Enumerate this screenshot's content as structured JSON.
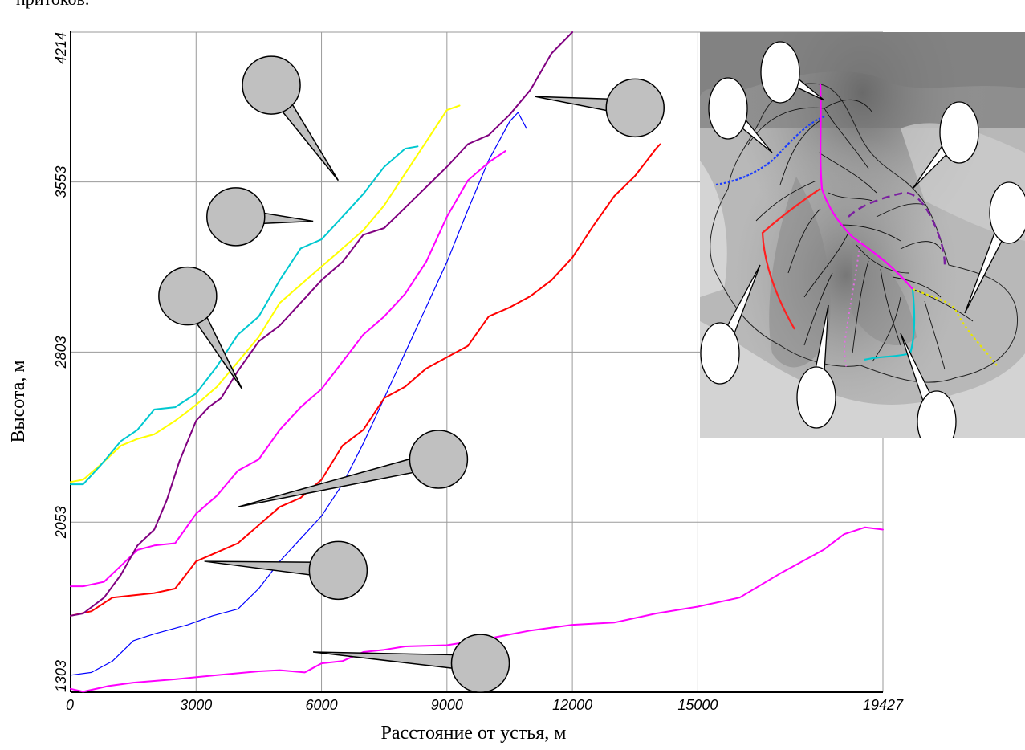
{
  "top_fragment": "притоков.",
  "chart_data": {
    "type": "line",
    "xlabel": "Расстояние от устья, м",
    "ylabel": "Высота, м",
    "xlim": [
      0,
      19427
    ],
    "ylim": [
      1303,
      4214
    ],
    "x_ticks": [
      0,
      3000,
      6000,
      9000,
      12000,
      15000,
      19427
    ],
    "x_tick_labels": [
      "0",
      "3000",
      "6000",
      "9000",
      "12000",
      "15000",
      "19427"
    ],
    "y_ticks": [
      1303,
      2053,
      2803,
      3553,
      4214
    ],
    "y_tick_labels": [
      "1303",
      "2053",
      "2803",
      "3553",
      "4214"
    ],
    "grid": true,
    "series": [
      {
        "color": "#ff00ff",
        "points": [
          [
            0,
            1318
          ],
          [
            300,
            1305
          ],
          [
            900,
            1330
          ],
          [
            1500,
            1345
          ],
          [
            2500,
            1360
          ],
          [
            3500,
            1378
          ],
          [
            4500,
            1395
          ],
          [
            5000,
            1400
          ],
          [
            5600,
            1390
          ],
          [
            6000,
            1430
          ],
          [
            6500,
            1440
          ],
          [
            7000,
            1480
          ],
          [
            7500,
            1490
          ],
          [
            8000,
            1505
          ],
          [
            9000,
            1510
          ],
          [
            10000,
            1540
          ],
          [
            11000,
            1575
          ],
          [
            12000,
            1600
          ],
          [
            13000,
            1610
          ],
          [
            14000,
            1650
          ],
          [
            15000,
            1680
          ],
          [
            16000,
            1720
          ],
          [
            17000,
            1830
          ],
          [
            18000,
            1930
          ],
          [
            18500,
            2000
          ],
          [
            19000,
            2030
          ],
          [
            19427,
            2020
          ]
        ]
      },
      {
        "color": "#0000ff",
        "points": [
          [
            0,
            1378
          ],
          [
            500,
            1390
          ],
          [
            1000,
            1440
          ],
          [
            1500,
            1530
          ],
          [
            2000,
            1560
          ],
          [
            2800,
            1600
          ],
          [
            3400,
            1640
          ],
          [
            4000,
            1670
          ],
          [
            4500,
            1760
          ],
          [
            5000,
            1880
          ],
          [
            5500,
            1980
          ],
          [
            6000,
            2080
          ],
          [
            6500,
            2220
          ],
          [
            7000,
            2400
          ],
          [
            7500,
            2600
          ],
          [
            8000,
            2800
          ],
          [
            8500,
            3000
          ],
          [
            9000,
            3200
          ],
          [
            9500,
            3430
          ],
          [
            10000,
            3650
          ],
          [
            10500,
            3820
          ],
          [
            10700,
            3860
          ],
          [
            10900,
            3790
          ]
        ]
      },
      {
        "color": "#ff0000",
        "points": [
          [
            0,
            1640
          ],
          [
            500,
            1660
          ],
          [
            1000,
            1720
          ],
          [
            1500,
            1730
          ],
          [
            2000,
            1740
          ],
          [
            2500,
            1760
          ],
          [
            3000,
            1880
          ],
          [
            3500,
            1920
          ],
          [
            4000,
            1960
          ],
          [
            4500,
            2040
          ],
          [
            5000,
            2120
          ],
          [
            5500,
            2160
          ],
          [
            6000,
            2240
          ],
          [
            6500,
            2390
          ],
          [
            7000,
            2460
          ],
          [
            7500,
            2600
          ],
          [
            8000,
            2650
          ],
          [
            8500,
            2730
          ],
          [
            9000,
            2780
          ],
          [
            9500,
            2830
          ],
          [
            10000,
            2960
          ],
          [
            10500,
            3000
          ],
          [
            11000,
            3050
          ],
          [
            11500,
            3120
          ],
          [
            12000,
            3220
          ],
          [
            12500,
            3360
          ],
          [
            13000,
            3490
          ],
          [
            13500,
            3580
          ],
          [
            14000,
            3700
          ],
          [
            14100,
            3720
          ]
        ]
      },
      {
        "color": "#ff00ff",
        "points": [
          [
            0,
            1770
          ],
          [
            300,
            1770
          ],
          [
            800,
            1790
          ],
          [
            1200,
            1860
          ],
          [
            1600,
            1930
          ],
          [
            2000,
            1950
          ],
          [
            2500,
            1960
          ],
          [
            3000,
            2090
          ],
          [
            3500,
            2170
          ],
          [
            4000,
            2280
          ],
          [
            4500,
            2330
          ],
          [
            5000,
            2460
          ],
          [
            5500,
            2560
          ],
          [
            6000,
            2640
          ],
          [
            6500,
            2760
          ],
          [
            7000,
            2880
          ],
          [
            7500,
            2960
          ],
          [
            8000,
            3060
          ],
          [
            8500,
            3200
          ],
          [
            9000,
            3400
          ],
          [
            9500,
            3560
          ],
          [
            10000,
            3640
          ],
          [
            10400,
            3690
          ]
        ]
      },
      {
        "color": "#800080",
        "points": [
          [
            0,
            1640
          ],
          [
            300,
            1650
          ],
          [
            800,
            1720
          ],
          [
            1200,
            1820
          ],
          [
            1600,
            1950
          ],
          [
            2000,
            2020
          ],
          [
            2300,
            2150
          ],
          [
            2600,
            2320
          ],
          [
            3000,
            2500
          ],
          [
            3300,
            2560
          ],
          [
            3600,
            2600
          ],
          [
            4000,
            2720
          ],
          [
            4500,
            2850
          ],
          [
            5000,
            2920
          ],
          [
            5500,
            3020
          ],
          [
            6000,
            3120
          ],
          [
            6500,
            3200
          ],
          [
            7000,
            3320
          ],
          [
            7500,
            3350
          ],
          [
            8000,
            3440
          ],
          [
            8500,
            3530
          ],
          [
            9000,
            3620
          ],
          [
            9500,
            3720
          ],
          [
            10000,
            3760
          ],
          [
            10500,
            3850
          ],
          [
            11000,
            3960
          ],
          [
            11500,
            4120
          ],
          [
            12000,
            4214
          ]
        ]
      },
      {
        "color": "#ffff00",
        "points": [
          [
            0,
            2230
          ],
          [
            300,
            2240
          ],
          [
            800,
            2320
          ],
          [
            1200,
            2390
          ],
          [
            1600,
            2420
          ],
          [
            2000,
            2440
          ],
          [
            2500,
            2500
          ],
          [
            3000,
            2570
          ],
          [
            3500,
            2650
          ],
          [
            4000,
            2760
          ],
          [
            4500,
            2870
          ],
          [
            5000,
            3020
          ],
          [
            5500,
            3100
          ],
          [
            6000,
            3180
          ],
          [
            6500,
            3260
          ],
          [
            7000,
            3340
          ],
          [
            7500,
            3450
          ],
          [
            8000,
            3590
          ],
          [
            8500,
            3730
          ],
          [
            9000,
            3870
          ],
          [
            9300,
            3890
          ]
        ]
      },
      {
        "color": "#00c8d0",
        "points": [
          [
            0,
            2220
          ],
          [
            300,
            2220
          ],
          [
            700,
            2300
          ],
          [
            1200,
            2410
          ],
          [
            1600,
            2460
          ],
          [
            2000,
            2550
          ],
          [
            2500,
            2560
          ],
          [
            3000,
            2620
          ],
          [
            3500,
            2740
          ],
          [
            4000,
            2880
          ],
          [
            4500,
            2960
          ],
          [
            5000,
            3120
          ],
          [
            5500,
            3260
          ],
          [
            6000,
            3300
          ],
          [
            6500,
            3400
          ],
          [
            7000,
            3500
          ],
          [
            7500,
            3620
          ],
          [
            8000,
            3700
          ],
          [
            8300,
            3710
          ]
        ]
      }
    ]
  },
  "callouts": [
    {
      "name": "callout-top-left-mid",
      "tip": [
        6400,
        3560
      ],
      "bubble": [
        4800,
        3980
      ]
    },
    {
      "name": "callout-upper-right",
      "tip": [
        11100,
        3930
      ],
      "bubble": [
        13500,
        3880
      ]
    },
    {
      "name": "callout-cyan",
      "tip": [
        5800,
        3380
      ],
      "bubble": [
        3950,
        3400
      ]
    },
    {
      "name": "callout-left",
      "tip": [
        4100,
        2640
      ],
      "bubble": [
        2800,
        3050
      ]
    },
    {
      "name": "callout-red",
      "tip": [
        4000,
        2120
      ],
      "bubble": [
        8800,
        2330
      ]
    },
    {
      "name": "callout-blue",
      "tip": [
        3200,
        1880
      ],
      "bubble": [
        6400,
        1840
      ]
    },
    {
      "name": "callout-bottom",
      "tip": [
        5800,
        1480
      ],
      "bubble": [
        9800,
        1430
      ]
    }
  ],
  "map_callouts": [
    {
      "name": "map-callout-top",
      "tip": [
        155,
        85
      ],
      "bubble": [
        100,
        50
      ]
    },
    {
      "name": "map-callout-upper-left",
      "tip": [
        90,
        150
      ],
      "bubble": [
        35,
        95
      ]
    },
    {
      "name": "map-callout-right-upper",
      "tip": [
        265,
        195
      ],
      "bubble": [
        323,
        125
      ]
    },
    {
      "name": "map-callout-right",
      "tip": [
        330,
        350
      ],
      "bubble": [
        385,
        225
      ]
    },
    {
      "name": "map-callout-lower-left",
      "tip": [
        75,
        290
      ],
      "bubble": [
        25,
        400
      ]
    },
    {
      "name": "map-callout-lower-middle",
      "tip": [
        160,
        340
      ],
      "bubble": [
        145,
        455
      ]
    },
    {
      "name": "map-callout-lower-right",
      "tip": [
        250,
        375
      ],
      "bubble": [
        295,
        485
      ]
    }
  ]
}
